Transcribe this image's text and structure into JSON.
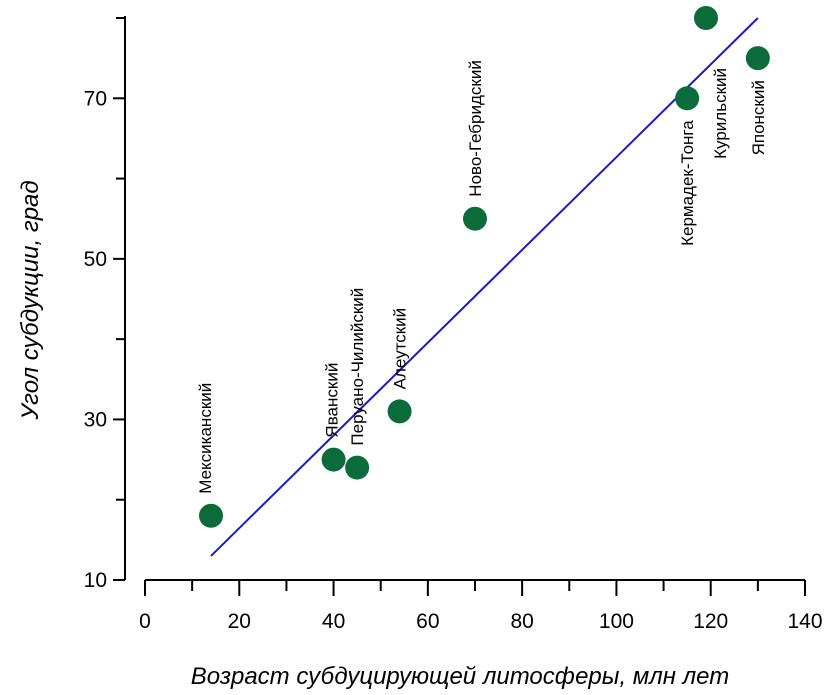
{
  "chart_data": {
    "type": "scatter",
    "title": "",
    "xlabel": "Возраст субдуцирующей литосферы, млн лет",
    "ylabel": "Угол субдукции, град",
    "xlim": [
      0,
      140
    ],
    "ylim": [
      10,
      80
    ],
    "xticks": [
      0,
      20,
      40,
      60,
      80,
      100,
      120,
      140
    ],
    "yticks": [
      10,
      30,
      50,
      70
    ],
    "grid": false,
    "point_color": "#0b6b3a",
    "trend_color": "#1a1acc",
    "points": [
      {
        "label": "Мексиканский",
        "x": 14,
        "y": 18
      },
      {
        "label": "Яванский",
        "x": 40,
        "y": 25
      },
      {
        "label": "Перуано-Чилийский",
        "x": 45,
        "y": 24
      },
      {
        "label": "Алеутский",
        "x": 54,
        "y": 31
      },
      {
        "label": "Ново-Гебридский",
        "x": 70,
        "y": 55
      },
      {
        "label": "Кермадек-Тонга",
        "x": 115,
        "y": 70
      },
      {
        "label": "Курильский",
        "x": 119,
        "y": 80
      },
      {
        "label": "Японский",
        "x": 130,
        "y": 75
      }
    ],
    "trendline": {
      "x": [
        14,
        130
      ],
      "y": [
        13,
        80
      ]
    }
  }
}
